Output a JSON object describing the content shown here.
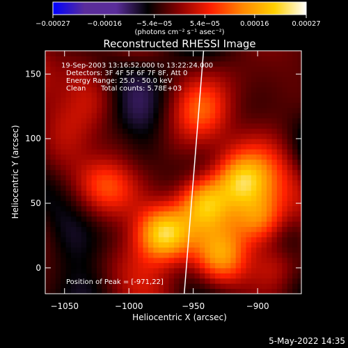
{
  "chart_data": {
    "type": "heatmap",
    "title": "Reconstructed RHESSI Image",
    "xlabel": "Heliocentric X (arcsec)",
    "ylabel": "Heliocentric Y (arcsec)",
    "xlim": [
      -1065,
      -866
    ],
    "ylim": [
      -20,
      168
    ],
    "xticks": [
      -1050,
      -1000,
      -950,
      -900
    ],
    "yticks": [
      0,
      50,
      100,
      150
    ],
    "xtick_labels": [
      "−1050",
      "−1000",
      "−950",
      "−900"
    ],
    "ytick_labels": [
      "0",
      "50",
      "100",
      "150"
    ],
    "colorbar": {
      "min": -0.00027,
      "max": 0.00027,
      "ticks": [
        -0.00027,
        -0.00016,
        -5.4e-05,
        5.4e-05,
        0.00016,
        0.00027
      ],
      "tick_labels": [
        "−0.00027",
        "−0.00016",
        "−5.4e−05",
        "5.4e−05",
        "0.00016",
        "0.00027"
      ],
      "units": "(photons cm⁻² s⁻¹ asec⁻²)",
      "colormap": [
        "#0000ff",
        "#5a2d9a",
        "#5a2d9a",
        "#000000",
        "#8b0000",
        "#ff2000",
        "#ff8800",
        "#ffd000",
        "#ffffff"
      ]
    },
    "annotations": [
      "19-Sep-2003 13:16:52.000 to 13:22:24.000",
      "Detectors: 3F 4F 5F 6F 7F 8F, Att 0",
      "Energy Range: 25.0 - 50.0 keV",
      "Clean",
      "Total counts: 5.78E+03",
      "Position of Peak = [-971,22]"
    ],
    "peak": {
      "x": -971,
      "y": 22
    },
    "bright_sources": [
      {
        "x": -975,
        "y": 25,
        "value": 0.00027
      },
      {
        "x": -943,
        "y": 50,
        "value": 0.00024
      },
      {
        "x": -915,
        "y": 65,
        "value": 0.00022
      },
      {
        "x": -900,
        "y": 35,
        "value": 0.0002
      },
      {
        "x": -930,
        "y": 5,
        "value": 0.00016
      },
      {
        "x": -888,
        "y": 0,
        "value": 0.00014
      },
      {
        "x": -1020,
        "y": 65,
        "value": 9e-05
      },
      {
        "x": -1008,
        "y": 95,
        "value": 8e-05
      },
      {
        "x": -945,
        "y": 120,
        "value": 0.0001
      },
      {
        "x": -1040,
        "y": 150,
        "value": 7e-05
      },
      {
        "x": -1025,
        "y": 130,
        "value": 6e-05
      }
    ],
    "limb_line": {
      "x": [
        -957,
        -942
      ],
      "y": [
        -20,
        168
      ]
    },
    "timestamp": "5-May-2022 14:35"
  }
}
